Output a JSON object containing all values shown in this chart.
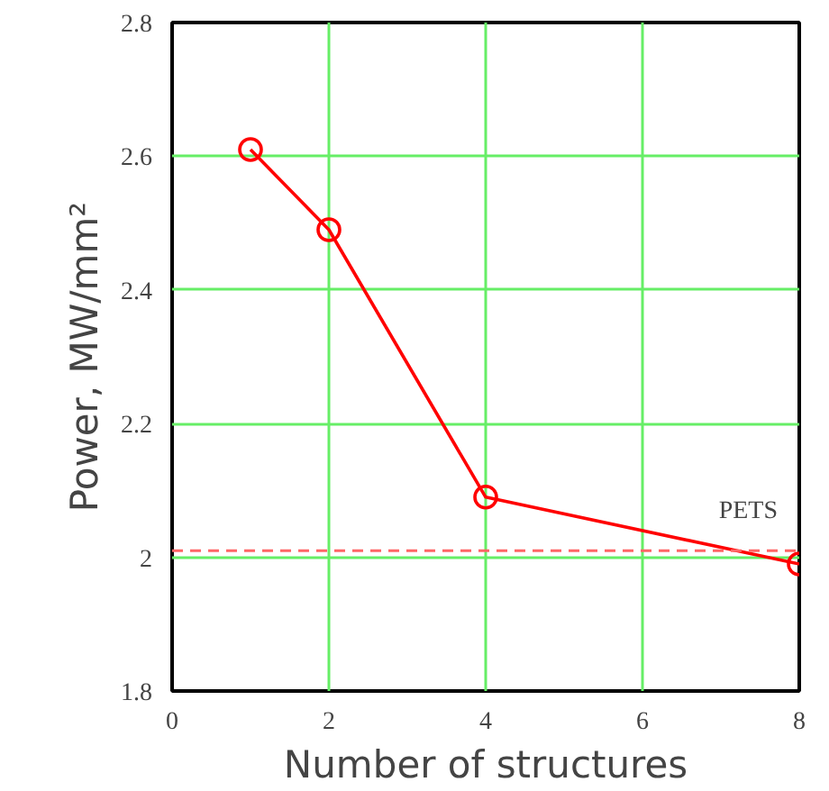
{
  "chart_data": {
    "type": "line",
    "xlabel": "Number of structures",
    "ylabel": "Power, MW/mm²",
    "x": [
      1,
      2,
      4,
      8
    ],
    "series": [
      {
        "color": "#ff0000",
        "values": [
          2.61,
          2.49,
          2.09,
          1.99
        ]
      }
    ],
    "xlim": [
      0,
      8
    ],
    "ylim": [
      1.8,
      2.8
    ],
    "xticks": [
      0,
      2,
      4,
      6,
      8
    ],
    "yticks": [
      1.8,
      2,
      2.2,
      2.4,
      2.6,
      2.8
    ],
    "grid": true,
    "marker": "circle",
    "line_style": "solid",
    "ref_lines": [
      {
        "axis": "y",
        "value": 2.01,
        "label": "PETS",
        "color": "#ff6666",
        "line_style": "dashed"
      }
    ]
  }
}
